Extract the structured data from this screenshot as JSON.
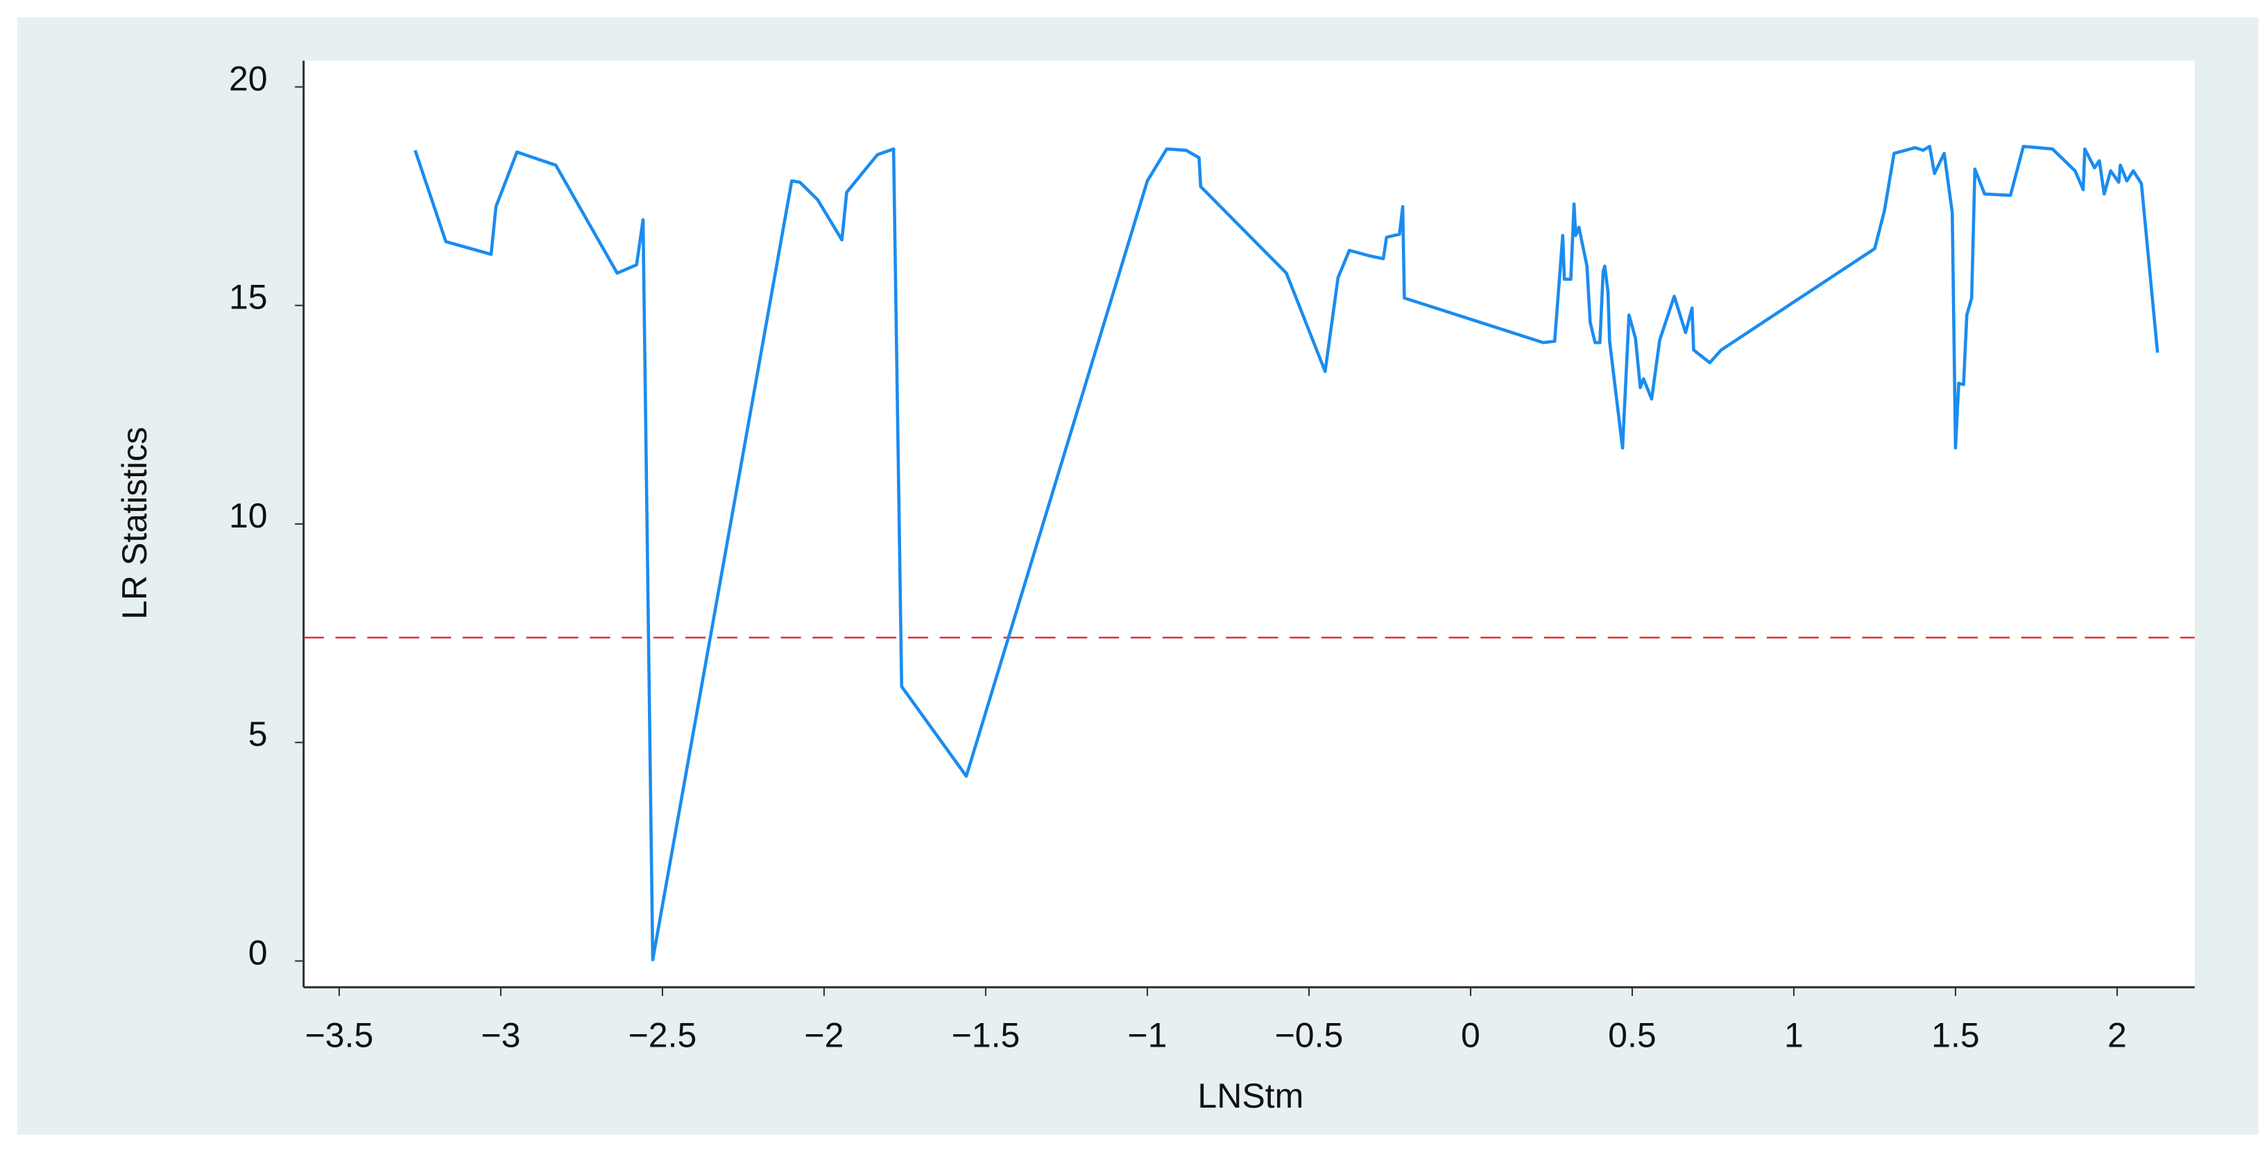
{
  "chart_data": {
    "type": "line",
    "x_label": "LNStm",
    "y_label": "LR Statistics",
    "color": "#1a8cf0",
    "hline": 7.4,
    "hline_color": "#e03030",
    "xlim": [
      -3.61,
      2.24
    ],
    "ylim": [
      -0.6,
      20.6
    ],
    "xticks": [
      {
        "value": -3.5,
        "label": "−3.5"
      },
      {
        "value": -3,
        "label": "−3"
      },
      {
        "value": -2.5,
        "label": "−2.5"
      },
      {
        "value": -2,
        "label": "−2"
      },
      {
        "value": -1.5,
        "label": "−1.5"
      },
      {
        "value": -1,
        "label": "−1"
      },
      {
        "value": -0.5,
        "label": "−0.5"
      },
      0,
      0.5,
      1,
      1.5,
      2
    ],
    "yticks": [
      0,
      5,
      10,
      15,
      20
    ],
    "x": [
      -3.265,
      -3.17,
      -3.03,
      -3.015,
      -2.95,
      -2.83,
      -2.64,
      -2.58,
      -2.56,
      -2.53,
      -2.1,
      -2.075,
      -2.02,
      -1.945,
      -1.93,
      -1.835,
      -1.785,
      -1.76,
      -1.56,
      -1.0,
      -0.94,
      -0.88,
      -0.84,
      -0.835,
      -0.57,
      -0.45,
      -0.41,
      -0.375,
      -0.31,
      -0.27,
      -0.26,
      -0.22,
      -0.21,
      -0.205,
      0.225,
      0.26,
      0.285,
      0.29,
      0.31,
      0.32,
      0.325,
      0.335,
      0.36,
      0.37,
      0.385,
      0.4,
      0.41,
      0.415,
      0.425,
      0.43,
      0.47,
      0.49,
      0.51,
      0.525,
      0.535,
      0.56,
      0.585,
      0.63,
      0.665,
      0.685,
      0.69,
      0.74,
      0.775,
      1.25,
      1.28,
      1.31,
      1.375,
      1.4,
      1.42,
      1.435,
      1.465,
      1.49,
      1.5,
      1.51,
      1.525,
      1.535,
      1.55,
      1.56,
      1.59,
      1.67,
      1.71,
      1.8,
      1.87,
      1.895,
      1.9,
      1.93,
      1.945,
      1.96,
      1.98,
      2.005,
      2.01,
      2.03,
      2.05,
      2.075,
      2.125
    ],
    "values": [
      18.55,
      16.46,
      16.17,
      17.26,
      18.51,
      18.21,
      15.74,
      15.93,
      16.96,
      0.03,
      17.85,
      17.82,
      17.42,
      16.5,
      17.59,
      18.45,
      18.58,
      6.28,
      4.23,
      17.85,
      18.58,
      18.55,
      18.38,
      17.72,
      15.74,
      13.49,
      15.64,
      16.26,
      16.13,
      16.07,
      16.56,
      16.63,
      17.26,
      15.17,
      14.15,
      14.18,
      16.6,
      15.6,
      15.6,
      17.32,
      16.6,
      16.79,
      15.9,
      14.61,
      14.15,
      14.15,
      15.77,
      15.9,
      15.31,
      14.18,
      11.74,
      14.78,
      14.25,
      13.12,
      13.32,
      12.86,
      14.21,
      15.21,
      14.38,
      14.94,
      13.98,
      13.69,
      13.98,
      16.3,
      17.16,
      18.48,
      18.61,
      18.55,
      18.64,
      18.02,
      18.48,
      17.12,
      11.74,
      13.22,
      13.19,
      14.78,
      15.17,
      18.12,
      17.55,
      17.52,
      18.64,
      18.58,
      18.08,
      17.65,
      18.58,
      18.15,
      18.31,
      17.55,
      18.08,
      17.82,
      18.21,
      17.85,
      18.08,
      17.79,
      13.92
    ]
  }
}
